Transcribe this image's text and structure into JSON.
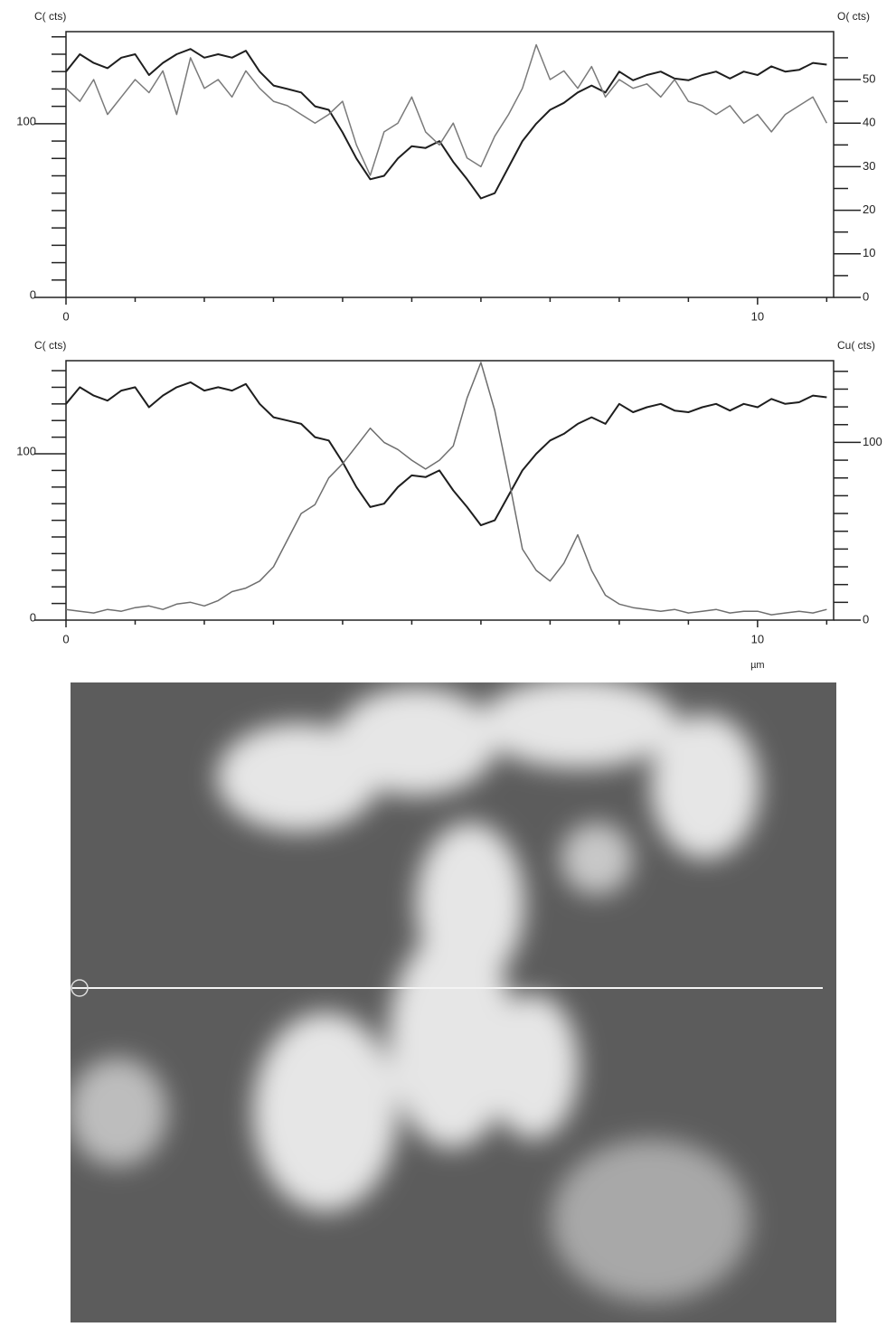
{
  "chart_data": [
    {
      "type": "line",
      "y_label": "C( cts)",
      "y2_label": "O( cts)",
      "x": [
        0,
        0.2,
        0.4,
        0.6,
        0.8,
        1.0,
        1.2,
        1.4,
        1.6,
        1.8,
        2.0,
        2.2,
        2.4,
        2.6,
        2.8,
        3.0,
        3.2,
        3.4,
        3.6,
        3.8,
        4.0,
        4.2,
        4.4,
        4.6,
        4.8,
        5.0,
        5.2,
        5.4,
        5.6,
        5.8,
        6.0,
        6.2,
        6.4,
        6.6,
        6.8,
        7.0,
        7.2,
        7.4,
        7.6,
        7.8,
        8.0,
        8.2,
        8.4,
        8.6,
        8.8,
        9.0,
        9.2,
        9.4,
        9.6,
        9.8,
        10.0,
        10.2,
        10.4,
        10.6,
        10.8,
        11.0
      ],
      "xlim": [
        0,
        11.1
      ],
      "xticks": [
        0,
        10
      ],
      "xminorticks": [
        1,
        2,
        3,
        4,
        5,
        6,
        7,
        8,
        9,
        11
      ],
      "ylim": [
        0,
        153
      ],
      "yticks": [
        0,
        100
      ],
      "yminorticks": [
        10,
        20,
        30,
        40,
        50,
        60,
        70,
        80,
        90,
        110,
        120,
        130,
        140,
        150
      ],
      "y2lim": [
        0,
        61
      ],
      "y2ticks": [
        0,
        10,
        20,
        30,
        40,
        50
      ],
      "y2minorticks": [
        5,
        15,
        25,
        35,
        45,
        55
      ],
      "series": [
        {
          "color": "#1e1e1e",
          "values": [
            130,
            140,
            135,
            132,
            138,
            140,
            128,
            135,
            140,
            143,
            138,
            140,
            138,
            142,
            130,
            122,
            120,
            118,
            110,
            108,
            95,
            80,
            68,
            70,
            80,
            87,
            86,
            90,
            78,
            68,
            57,
            60,
            75,
            90,
            100,
            108,
            112,
            118,
            122,
            118,
            130,
            125,
            128,
            130,
            126,
            125,
            128,
            130,
            126,
            130,
            128,
            133,
            130,
            131,
            135,
            134
          ]
        },
        {
          "color": "#7a7a7a",
          "axis": "y2",
          "values": [
            48,
            45,
            50,
            42,
            46,
            50,
            47,
            52,
            42,
            55,
            48,
            50,
            46,
            52,
            48,
            45,
            44,
            42,
            40,
            42,
            45,
            35,
            28,
            38,
            40,
            46,
            38,
            35,
            40,
            32,
            30,
            37,
            42,
            48,
            58,
            50,
            52,
            48,
            53,
            46,
            50,
            48,
            49,
            46,
            50,
            45,
            44,
            42,
            44,
            40,
            42,
            38,
            42,
            44,
            46,
            40
          ]
        }
      ]
    },
    {
      "type": "line",
      "y_label": "C( cts)",
      "y2_label": "Cu( cts)",
      "x_label": "µm",
      "x": [
        0,
        0.2,
        0.4,
        0.6,
        0.8,
        1.0,
        1.2,
        1.4,
        1.6,
        1.8,
        2.0,
        2.2,
        2.4,
        2.6,
        2.8,
        3.0,
        3.2,
        3.4,
        3.6,
        3.8,
        4.0,
        4.2,
        4.4,
        4.6,
        4.8,
        5.0,
        5.2,
        5.4,
        5.6,
        5.8,
        6.0,
        6.2,
        6.4,
        6.6,
        6.8,
        7.0,
        7.2,
        7.4,
        7.6,
        7.8,
        8.0,
        8.2,
        8.4,
        8.6,
        8.8,
        9.0,
        9.2,
        9.4,
        9.6,
        9.8,
        10.0,
        10.2,
        10.4,
        10.6,
        10.8,
        11.0
      ],
      "xlim": [
        0,
        11.1
      ],
      "xticks": [
        0,
        10
      ],
      "xminorticks": [
        1,
        2,
        3,
        4,
        5,
        6,
        7,
        8,
        9,
        11
      ],
      "ylim": [
        0,
        156
      ],
      "yticks": [
        0,
        100
      ],
      "yminorticks": [
        10,
        20,
        30,
        40,
        50,
        60,
        70,
        80,
        90,
        110,
        120,
        130,
        140,
        150
      ],
      "y2lim": [
        0,
        146
      ],
      "y2ticks": [
        0,
        100
      ],
      "y2minorticks": [
        10,
        20,
        30,
        40,
        50,
        60,
        70,
        80,
        90,
        110,
        120,
        130,
        140
      ],
      "series": [
        {
          "color": "#1e1e1e",
          "values": [
            130,
            140,
            135,
            132,
            138,
            140,
            128,
            135,
            140,
            143,
            138,
            140,
            138,
            142,
            130,
            122,
            120,
            118,
            110,
            108,
            95,
            80,
            68,
            70,
            80,
            87,
            86,
            90,
            78,
            68,
            57,
            60,
            75,
            90,
            100,
            108,
            112,
            118,
            122,
            118,
            130,
            125,
            128,
            130,
            126,
            125,
            128,
            130,
            126,
            130,
            128,
            133,
            130,
            131,
            135,
            134
          ]
        },
        {
          "color": "#6e6e6e",
          "axis": "y2",
          "values": [
            6,
            5,
            4,
            6,
            5,
            7,
            8,
            6,
            9,
            10,
            8,
            11,
            16,
            18,
            22,
            30,
            45,
            60,
            65,
            80,
            88,
            98,
            108,
            100,
            96,
            90,
            85,
            90,
            98,
            125,
            145,
            118,
            80,
            40,
            28,
            22,
            32,
            48,
            28,
            14,
            9,
            7,
            6,
            5,
            6,
            4,
            5,
            6,
            4,
            5,
            5,
            3,
            4,
            5,
            4,
            6
          ]
        }
      ]
    }
  ]
}
